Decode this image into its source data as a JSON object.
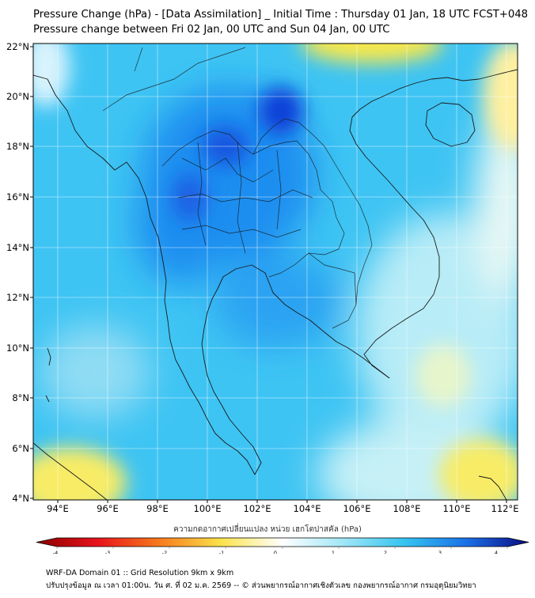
{
  "header": {
    "title_line1": "Pressure Change (hPa) - [Data Assimilation] _ Initial Time : Thursday 01 Jan, 18 UTC FCST+048",
    "title_line2": "Pressure change between Fri 02 Jan, 00 UTC and Sun 04 Jan, 00 UTC"
  },
  "map": {
    "lon_ticks": [
      "94°E",
      "96°E",
      "98°E",
      "100°E",
      "102°E",
      "104°E",
      "106°E",
      "108°E",
      "110°E",
      "112°E"
    ],
    "lat_ticks": [
      "22°N",
      "20°N",
      "18°N",
      "16°N",
      "14°N",
      "12°N",
      "10°N",
      "8°N",
      "6°N",
      "4°N"
    ],
    "lon_values": [
      94,
      96,
      98,
      100,
      102,
      104,
      106,
      108,
      110,
      112
    ],
    "lat_values": [
      22,
      20,
      18,
      16,
      14,
      12,
      10,
      8,
      6,
      4
    ],
    "lon_range": [
      93,
      113
    ],
    "lat_range": [
      4,
      22
    ],
    "field": "pressure change (hPa)"
  },
  "colorbar": {
    "title": "ความกดอากาศเปลี่ยนแปลง หน่วย เฮกโตปาสคัล (hPa)",
    "labels": [
      "-4",
      "-3",
      "-2",
      "-1",
      "0",
      "1",
      "2",
      "3",
      "4"
    ],
    "range": [
      -4,
      4
    ],
    "colors": {
      "neg4": "#8b0000",
      "neg3": "#e8141c",
      "neg2": "#f77b1d",
      "neg1": "#fbe34a",
      "zero": "#ffffff",
      "pos1": "#9fe6f6",
      "pos2": "#33c3f0",
      "pos3": "#1b6fe6",
      "pos4": "#0a0a80"
    }
  },
  "footer": {
    "line1": "WRF-DA Domain 01 :: Grid Resolution 9km x 9km",
    "line2": "ปรับปรุงข้อมูล ณ เวลา 01:00น. วัน ศ. ที่ 02 ม.ค. 2569 -- © ส่วนพยากรณ์อากาศเชิงตัวเลข กองพยากรณ์อากาศ กรมอุตุนิยมวิทยา"
  }
}
